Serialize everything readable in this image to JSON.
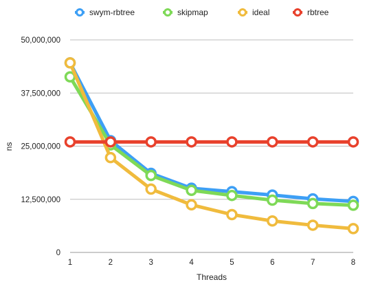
{
  "chart_data": {
    "type": "line",
    "xlabel": "Threads",
    "ylabel": "ns",
    "x": [
      1,
      2,
      3,
      4,
      5,
      6,
      7,
      8
    ],
    "ylim": [
      0,
      50000000
    ],
    "yticks": [
      0,
      12500000,
      25000000,
      37500000,
      50000000
    ],
    "ytick_labels": [
      "0",
      "12,500,000",
      "25,000,000",
      "37,500,000",
      "50,000,000"
    ],
    "xtick_labels": [
      "1",
      "2",
      "3",
      "4",
      "5",
      "6",
      "7",
      "8"
    ],
    "grid": "horizontal",
    "legend_position": "top",
    "series": [
      {
        "name": "swym-rbtree",
        "color": "#3d9ff5",
        "values": [
          44600000,
          26300000,
          18600000,
          15100000,
          14300000,
          13500000,
          12600000,
          12000000
        ]
      },
      {
        "name": "skipmap",
        "color": "#7ed957",
        "values": [
          41300000,
          25300000,
          18100000,
          14600000,
          13400000,
          12300000,
          11500000,
          11100000
        ]
      },
      {
        "name": "ideal",
        "color": "#f0bb3d",
        "values": [
          44600000,
          22300000,
          14900000,
          11200000,
          8900000,
          7400000,
          6400000,
          5600000
        ]
      },
      {
        "name": "rbtree",
        "color": "#e8412c",
        "values": [
          26000000,
          26000000,
          26000000,
          26000000,
          26000000,
          26000000,
          26000000,
          26000000
        ]
      }
    ]
  }
}
